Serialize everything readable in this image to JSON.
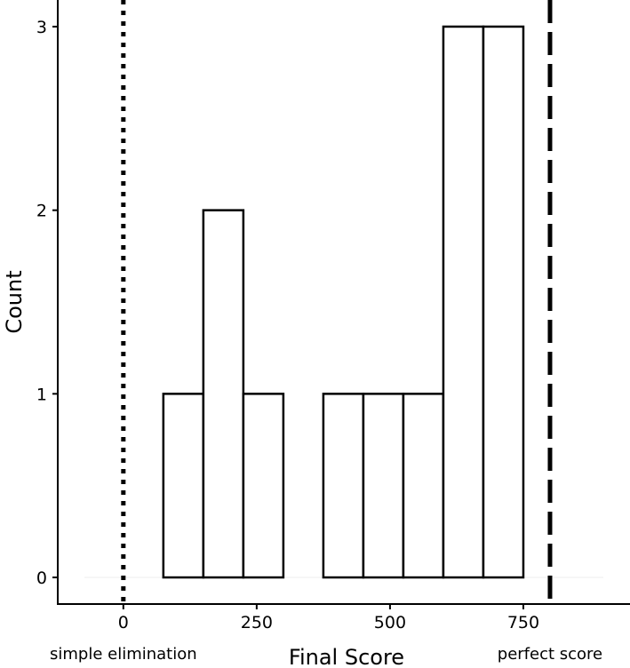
{
  "chart_data": {
    "type": "histogram",
    "x_label": "Final Score",
    "y_label": "Count",
    "bins": [
      75,
      150,
      225,
      300,
      375,
      450,
      525,
      600,
      675,
      750
    ],
    "values": [
      1,
      2,
      1,
      0,
      1,
      1,
      1,
      3,
      3
    ],
    "color": "#ffffff",
    "edge_color": "#000000",
    "xlim": [
      -123,
      950
    ],
    "xticks": [
      0,
      250,
      500,
      750
    ],
    "ylim": [
      -0.145,
      3.145
    ],
    "yticks": [
      0,
      1,
      2,
      3
    ],
    "vlines": [
      {
        "value": 0,
        "style": "dotted",
        "label": "simple elimination"
      },
      {
        "value": 800,
        "style": "dashed",
        "label": "perfect score"
      }
    ]
  }
}
